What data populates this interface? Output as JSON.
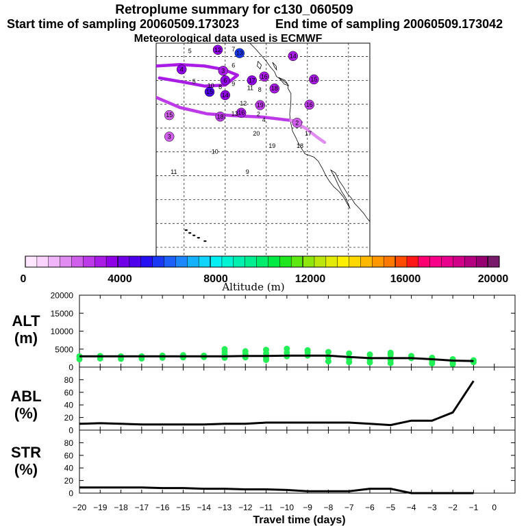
{
  "header": {
    "title": "Retroplume summary for c130_060509",
    "start_label": "Start time of sampling 20060509.173023",
    "end_label": "End time of sampling 20060509.173042",
    "met_label": "Meteorological data used is ECMWF"
  },
  "map": {
    "labels": [
      {
        "text": "5",
        "lon": -148.6,
        "lat": 55.7
      },
      {
        "text": "7",
        "lon": -138.0,
        "lat": 56.1
      },
      {
        "text": "6",
        "lon": -138.0,
        "lat": 52.7
      },
      {
        "text": "5",
        "lon": -147.6,
        "lat": 49.3
      },
      {
        "text": "10",
        "lon": -143.5,
        "lat": 48.5
      },
      {
        "text": "8",
        "lon": -141.2,
        "lat": 48.2
      },
      {
        "text": "9",
        "lon": -138.0,
        "lat": 48.8
      },
      {
        "text": "11",
        "lon": -133.9,
        "lat": 48.0
      },
      {
        "text": "8",
        "lon": -131.6,
        "lat": 47.6
      },
      {
        "text": "12",
        "lon": -135.6,
        "lat": 44.7
      },
      {
        "text": "13",
        "lon": -137.7,
        "lat": 42.6
      },
      {
        "text": "2",
        "lon": -131.9,
        "lat": 42.5
      },
      {
        "text": "4",
        "lon": -130.6,
        "lat": 41.3
      },
      {
        "text": "20",
        "lon": -132.4,
        "lat": 38.4
      },
      {
        "text": "19",
        "lon": -128.6,
        "lat": 35.8
      },
      {
        "text": "18",
        "lon": -121.8,
        "lat": 35.8
      },
      {
        "text": "17",
        "lon": -119.8,
        "lat": 38.4
      },
      {
        "text": "10",
        "lon": -142.5,
        "lat": 34.6
      },
      {
        "text": "11",
        "lon": -152.5,
        "lat": 30.4
      },
      {
        "text": "9",
        "lon": -134.6,
        "lat": 30.4
      }
    ],
    "clusters": [
      {
        "label": "12",
        "lon": -141.8,
        "lat": 56.4,
        "alt": 3600
      },
      {
        "label": "13",
        "lon": -136.5,
        "lat": 55.7,
        "alt": 5500
      },
      {
        "label": "14",
        "lon": -123.5,
        "lat": 55.1,
        "alt": 3100
      },
      {
        "label": "4",
        "lon": -150.6,
        "lat": 52.3,
        "alt": 3500
      },
      {
        "label": "3",
        "lon": -140.5,
        "lat": 52.0,
        "alt": 3200
      },
      {
        "label": "16",
        "lon": -130.5,
        "lat": 50.8,
        "alt": 3300
      },
      {
        "label": "17",
        "lon": -133.5,
        "lat": 50.0,
        "alt": 3800
      },
      {
        "label": "6",
        "lon": -140.0,
        "lat": 50.0,
        "alt": 3500
      },
      {
        "label": "15",
        "lon": -118.4,
        "lat": 50.2,
        "alt": 3200
      },
      {
        "label": "18",
        "lon": -128.0,
        "lat": 48.3,
        "alt": 3100
      },
      {
        "label": "15",
        "lon": -143.8,
        "lat": 47.6,
        "alt": 4800
      },
      {
        "label": "14",
        "lon": -140.0,
        "lat": 46.9,
        "alt": 3600
      },
      {
        "label": "19",
        "lon": -131.5,
        "lat": 44.8,
        "alt": 2900
      },
      {
        "label": "16",
        "lon": -136.1,
        "lat": 43.2,
        "alt": 3100
      },
      {
        "label": "18",
        "lon": -141.2,
        "lat": 42.4,
        "alt": 2600
      },
      {
        "label": "15",
        "lon": -153.6,
        "lat": 42.7,
        "alt": 2100
      },
      {
        "label": "16",
        "lon": -119.5,
        "lat": 44.9,
        "alt": 2500
      },
      {
        "label": "2",
        "lon": -122.5,
        "lat": 41.1,
        "alt": 2200
      },
      {
        "label": "3",
        "lon": -153.6,
        "lat": 38.2,
        "alt": 2300
      }
    ],
    "tracks": [
      {
        "alt": 3300,
        "points": [
          [
            -157.0,
            53.0
          ],
          [
            -151.0,
            53.3
          ],
          [
            -145.0,
            53.0
          ],
          [
            -140.5,
            52.3
          ],
          [
            -137.0,
            51.1
          ],
          [
            -140.0,
            49.0
          ],
          [
            -145.0,
            48.8
          ],
          [
            -150.0,
            49.6
          ],
          [
            -156.0,
            50.5
          ]
        ]
      },
      {
        "alt": 2800,
        "points": [
          [
            -157.0,
            46.5
          ],
          [
            -151.0,
            44.3
          ],
          [
            -144.5,
            43.0
          ],
          [
            -138.0,
            42.6
          ],
          [
            -131.0,
            42.3
          ],
          [
            -124.0,
            41.6
          ],
          [
            -121.5,
            41.2
          ]
        ]
      },
      {
        "alt": 1700,
        "points": [
          [
            -124.0,
            41.6
          ],
          [
            -120.5,
            40.0
          ],
          [
            -117.5,
            38.0
          ],
          [
            -115.8,
            37.0
          ]
        ]
      }
    ]
  },
  "colorbar": {
    "ticks": [
      "0",
      "4000",
      "8000",
      "12000",
      "16000",
      "20000"
    ],
    "label": "Altitude (m)",
    "colors": [
      "#ffe8ff",
      "#fad4fc",
      "#f0b4f8",
      "#e08cf0",
      "#d060ec",
      "#bc3ae8",
      "#a81ce6",
      "#9000e6",
      "#7000e8",
      "#4c00ec",
      "#2410f0",
      "#1838f4",
      "#1c60f8",
      "#1c88fc",
      "#14b0fc",
      "#10d4fc",
      "#00f0f4",
      "#00f4d4",
      "#00f0b0",
      "#00ee90",
      "#00ec6c",
      "#00ea44",
      "#20e620",
      "#5ce810",
      "#8ee60c",
      "#bce60c",
      "#e2ea08",
      "#fcf000",
      "#ffd800",
      "#ffb800",
      "#ff9800",
      "#ff7800",
      "#ff4c00",
      "#ff1818",
      "#ff0070",
      "#f80088",
      "#e8008c",
      "#d00088",
      "#b40080",
      "#960070",
      "#7a1a6a"
    ]
  },
  "chart_data": [
    {
      "type": "line",
      "name": "ALT (m)",
      "panel_title": "ALT\n(m)",
      "x": [
        -20,
        -19,
        -18,
        -17,
        -16,
        -15,
        -14,
        -13,
        -12,
        -11,
        -10,
        -9,
        -8,
        -7,
        -6,
        -5,
        -4,
        -3,
        -2,
        -1
      ],
      "y": [
        3000,
        3000,
        3000,
        3000,
        3000,
        3000,
        3000,
        3000,
        3100,
        3100,
        3200,
        3200,
        3200,
        2800,
        2500,
        2500,
        2500,
        2200,
        1800,
        1700
      ],
      "ylim": [
        0,
        20000
      ],
      "yticks": [
        0,
        5000,
        10000,
        15000,
        20000
      ],
      "scatter_series": {
        "name": "particle altitudes",
        "points": [
          [
            -20,
            3000
          ],
          [
            -20,
            2200
          ],
          [
            -19,
            3100
          ],
          [
            -19,
            2400
          ],
          [
            -18,
            3000
          ],
          [
            -18,
            2300
          ],
          [
            -17,
            3000
          ],
          [
            -17,
            2400
          ],
          [
            -16,
            3200
          ],
          [
            -16,
            2600
          ],
          [
            -15,
            3300
          ],
          [
            -15,
            2700
          ],
          [
            -14,
            3200
          ],
          [
            -14,
            2800
          ],
          [
            -13,
            3500
          ],
          [
            -13,
            4200
          ],
          [
            -13,
            5000
          ],
          [
            -13,
            2600
          ],
          [
            -12,
            3600
          ],
          [
            -12,
            4400
          ],
          [
            -12,
            2700
          ],
          [
            -11,
            3800
          ],
          [
            -11,
            4800
          ],
          [
            -11,
            2600
          ],
          [
            -11,
            2000
          ],
          [
            -10,
            4000
          ],
          [
            -10,
            5100
          ],
          [
            -10,
            3000
          ],
          [
            -9,
            4100
          ],
          [
            -9,
            4700
          ],
          [
            -9,
            3200
          ],
          [
            -8,
            4200
          ],
          [
            -8,
            2800
          ],
          [
            -8,
            1600
          ],
          [
            -7,
            3800
          ],
          [
            -7,
            2300
          ],
          [
            -7,
            1400
          ],
          [
            -6,
            3500
          ],
          [
            -6,
            2200
          ],
          [
            -6,
            1300
          ],
          [
            -5,
            3400
          ],
          [
            -5,
            4000
          ],
          [
            -5,
            2000
          ],
          [
            -5,
            1100
          ],
          [
            -4,
            3100
          ],
          [
            -4,
            2500
          ],
          [
            -3,
            2600
          ],
          [
            -3,
            1600
          ],
          [
            -3,
            1000
          ],
          [
            -2,
            2200
          ],
          [
            -2,
            1300
          ],
          [
            -2,
            800
          ],
          [
            -1,
            1900
          ],
          [
            -1,
            1400
          ]
        ]
      }
    },
    {
      "type": "line",
      "name": "ABL (%)",
      "panel_title": "ABL\n(%)",
      "x": [
        -20,
        -19,
        -18,
        -17,
        -16,
        -15,
        -14,
        -13,
        -12,
        -11,
        -10,
        -9,
        -8,
        -7,
        -6,
        -5,
        -4,
        -3,
        -2,
        -1
      ],
      "y": [
        10,
        11,
        10,
        9,
        9,
        9,
        9,
        10,
        10,
        12,
        12,
        12,
        12,
        12,
        10,
        8,
        15,
        15,
        28,
        78
      ],
      "ylim": [
        0,
        100
      ],
      "yticks": [
        0,
        20,
        40,
        60,
        80
      ]
    },
    {
      "type": "line",
      "name": "STR (%)",
      "panel_title": "STR\n(%)",
      "x": [
        -20,
        -19,
        -18,
        -17,
        -16,
        -15,
        -14,
        -13,
        -12,
        -11,
        -10,
        -9,
        -8,
        -7,
        -6,
        -5,
        -4,
        -3,
        -2,
        -1
      ],
      "y": [
        9,
        9,
        9,
        9,
        8,
        8,
        7,
        7,
        6,
        6,
        5,
        3,
        3,
        3,
        7,
        7,
        0,
        0,
        0,
        0
      ],
      "ylim": [
        0,
        100
      ],
      "yticks": [
        0,
        20,
        40,
        60,
        80
      ],
      "xlabel": "Travel time (days)",
      "xticks": [
        -20,
        -19,
        -18,
        -17,
        -16,
        -15,
        -14,
        -13,
        -12,
        -11,
        -10,
        -9,
        -8,
        -7,
        -6,
        -5,
        -4,
        -3,
        -2,
        -1,
        0
      ]
    }
  ],
  "panel_titles": {
    "alt": [
      "ALT",
      "(m)"
    ],
    "abl": [
      "ABL",
      "(%)"
    ],
    "str": [
      "STR",
      "(%)"
    ]
  },
  "colors": {
    "line": "#000000",
    "scatter": "#22ee55",
    "grid": "#000000"
  }
}
